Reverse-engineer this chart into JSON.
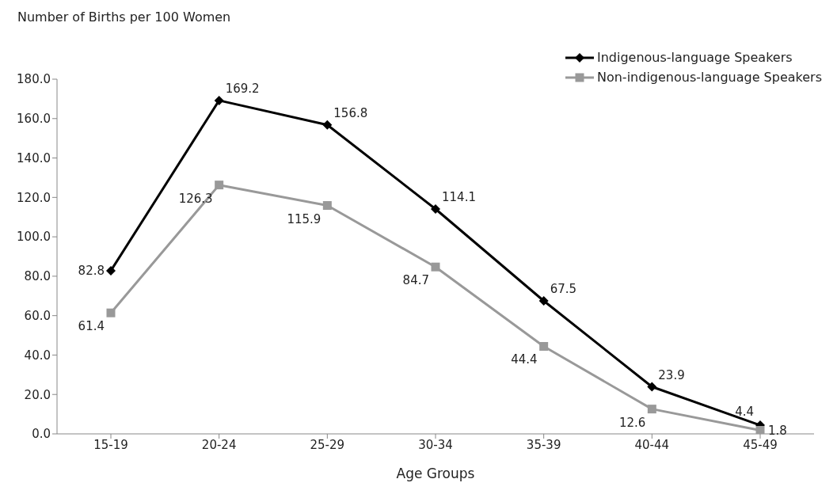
{
  "chart_data": {
    "type": "line",
    "ylabel": "Number of Births per 100 Women",
    "xlabel": "Age Groups",
    "categories": [
      "15-19",
      "20-24",
      "25-29",
      "30-34",
      "35-39",
      "40-44",
      "45-49"
    ],
    "series": [
      {
        "name": "Indigenous-language Speakers",
        "color": "#000000",
        "marker": "diamond",
        "values": [
          82.8,
          169.2,
          156.8,
          114.1,
          67.5,
          23.9,
          4.4
        ]
      },
      {
        "name": "Non-indigenous-language Speakers",
        "color": "#999999",
        "marker": "square",
        "values": [
          61.4,
          126.3,
          115.9,
          84.7,
          44.4,
          12.6,
          1.8
        ]
      }
    ],
    "ylim": [
      0,
      180
    ],
    "yticks": [
      {
        "value": 0,
        "label": "0.0"
      },
      {
        "value": 20,
        "label": "20.0"
      },
      {
        "value": 40,
        "label": "40.0"
      },
      {
        "value": 60,
        "label": "60.0"
      },
      {
        "value": 80,
        "label": "80.0"
      },
      {
        "value": 100,
        "label": "100.0"
      },
      {
        "value": 120,
        "label": "120.0"
      },
      {
        "value": 140,
        "label": "140.0"
      },
      {
        "value": 160,
        "label": "160.0"
      },
      {
        "value": 180,
        "label": "180.0"
      }
    ],
    "grid": false,
    "legend": "top right",
    "data_labels": true,
    "line_style": "solid"
  }
}
